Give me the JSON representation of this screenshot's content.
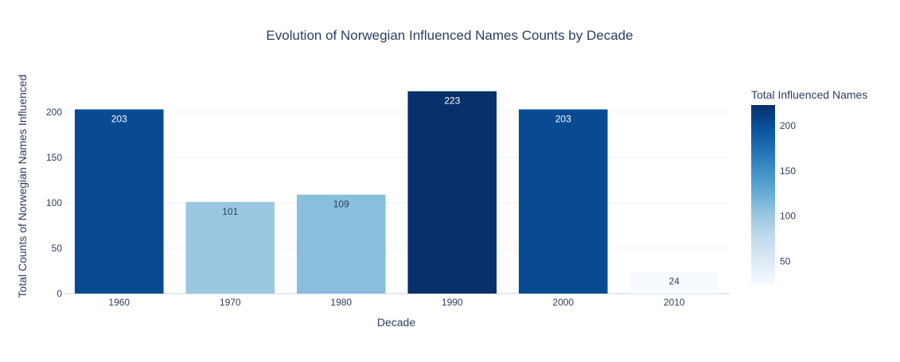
{
  "chart_data": {
    "type": "bar",
    "title": "Evolution of Norwegian Influenced Names Counts by Decade",
    "xlabel": "Decade",
    "ylabel": "Total Counts of Norwegian Names Influenced",
    "categories": [
      "1960",
      "1970",
      "1980",
      "1990",
      "2000",
      "2010"
    ],
    "values": [
      203,
      101,
      109,
      223,
      203,
      24
    ],
    "data_labels": [
      "203",
      "101",
      "109",
      "223",
      "203",
      "24"
    ],
    "ylim": [
      0,
      235
    ],
    "yticks": [
      0,
      50,
      100,
      150,
      200
    ],
    "grid": true,
    "colorscale": "Blues",
    "colorbar": {
      "title": "Total Influenced Names",
      "range": [
        24,
        223
      ],
      "ticks": [
        50,
        100,
        150,
        200
      ],
      "placement": "right"
    },
    "colors": {
      "title": "#2a3f5f",
      "axis_text": "#2a3f5f",
      "grid": "#ebf0f8",
      "label_dark": "#2a3f5f",
      "label_light": "#ffffff"
    }
  }
}
